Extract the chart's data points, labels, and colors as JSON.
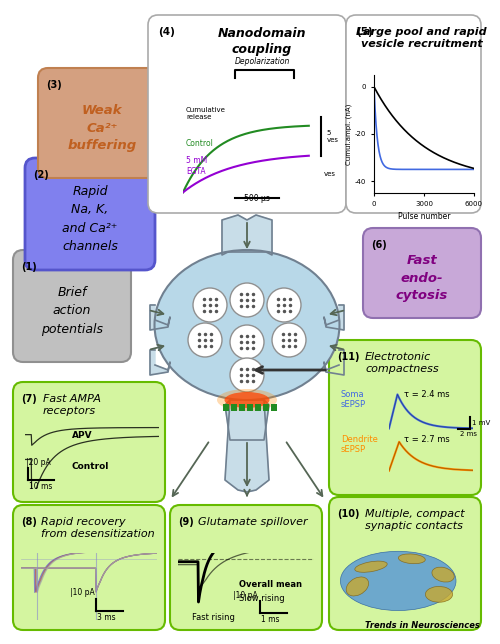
{
  "background": "#ffffff",
  "footer": "Trends in Neurosciences",
  "box1": {
    "label": "(1)",
    "text": "Brief\naction\npotentials",
    "fc": "#c0c0c0",
    "ec": "#909090"
  },
  "box2": {
    "label": "(2)",
    "text": "Rapid\nNa, K,\nand Ca²⁺\nchannels",
    "fc": "#8080ee",
    "ec": "#5555cc"
  },
  "box3": {
    "label": "(3)",
    "text": "Weak\nCa²⁺\nbuffering",
    "fc": "#d4a080",
    "ec": "#c08050",
    "tc": "#c06020"
  },
  "box4": {
    "label": "(4)",
    "title": "Nanodomain\ncoupling",
    "fc": "#ffffff",
    "ec": "#aaaaaa",
    "c1": "#228b22",
    "c2": "#9400d3",
    "leg1": "Control",
    "leg2": "5 mM\nEGTA",
    "xlab": "500 μs",
    "ylab": "5\nves",
    "ylab2": "Cumulative\nrelease",
    "dep": "Depolarization"
  },
  "box5": {
    "label": "(5)",
    "title": "Large pool and rapid\nvesicle recruitment",
    "fc": "#ffffff",
    "ec": "#aaaaaa",
    "xlab": "Pulse number",
    "ylab": "Cumul.ampl. (nA)",
    "c1": "#4169e1",
    "c2": "#000000"
  },
  "box6": {
    "label": "(6)",
    "text": "Fast\nendo-\ncytosis",
    "fc": "#c8a8d8",
    "ec": "#9070b0",
    "tc": "#800080"
  },
  "box7": {
    "label": "(7)",
    "title": "Fast AMPA\nreceptors",
    "fc": "#d4f5a0",
    "ec": "#66bb00",
    "apv": "APV",
    "ctrl": "Control",
    "xlab": "10 ms",
    "ylab": "|20 pA"
  },
  "box8": {
    "label": "(8)",
    "title": "Rapid recovery\nfrom desensitization",
    "fc": "#d4f5a0",
    "ec": "#66bb00",
    "xlab": "3 ms",
    "ylab": "|10 pA"
  },
  "box9": {
    "label": "(9)",
    "title": "Glutamate spillover",
    "fc": "#d4f5a0",
    "ec": "#66bb00",
    "l1": "Overall mean",
    "l2": "Slow rising",
    "l3": "Fast rising",
    "xlab": "1 ms",
    "ylab": "|10 pA"
  },
  "box10": {
    "label": "(10)",
    "title": "Multiple, compact\nsynaptic contacts",
    "fc": "#d4f5a0",
    "ec": "#66bb00"
  },
  "box11": {
    "label": "(11)",
    "title": "Electrotonic\ncompactness",
    "fc": "#d4f5a0",
    "ec": "#66bb00",
    "sl": "Soma\nsEPSP",
    "st": "τ = 2.4 ms",
    "dl": "Dendrite\nsEPSP",
    "dt": "τ = 2.7 ms",
    "sc": "#4169e1",
    "dc": "#ff8c00",
    "xlab": "2 ms",
    "ylab": "1 mV"
  },
  "neuron": {
    "body_fc": "#b8d8e8",
    "body_ec": "#708090",
    "finger_fc": "#c8dde8",
    "finger_ec": "#708090",
    "vesicle_fc": "#ffffff",
    "vesicle_ec": "#909090",
    "active_fc": "#ff4500",
    "ampa_fc": "#228b22"
  }
}
